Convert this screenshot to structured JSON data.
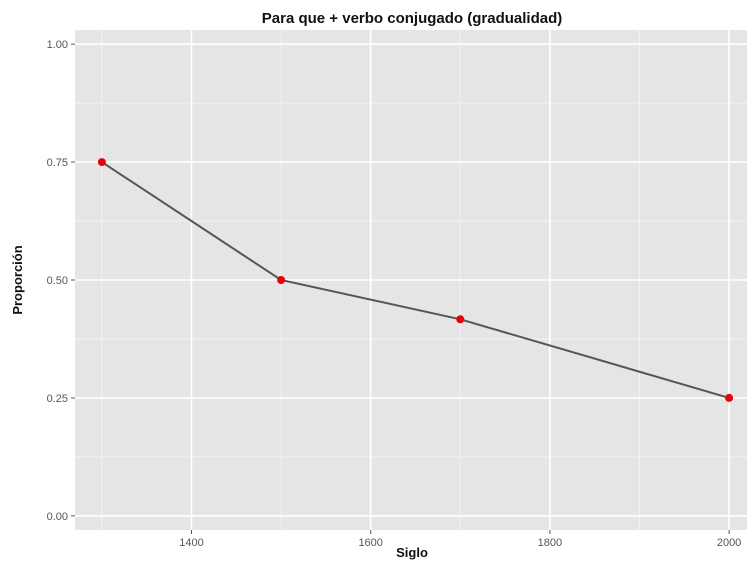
{
  "chart_data": {
    "type": "line",
    "title": "Para que + verbo conjugado (gradualidad)",
    "xlabel": "Siglo",
    "ylabel": "Proporción",
    "x": [
      1300,
      1500,
      1700,
      2000
    ],
    "series": [
      {
        "values": [
          0.75,
          0.5,
          0.4167,
          0.25
        ]
      }
    ],
    "xlim": [
      1270,
      2020
    ],
    "ylim": [
      -0.03,
      1.03
    ],
    "xticks": [
      1400,
      1600,
      1800,
      2000
    ],
    "xtick_labels": [
      "1400",
      "1600",
      "1800",
      "2000"
    ],
    "yticks": [
      0,
      0.25,
      0.5,
      0.75,
      1
    ],
    "ytick_labels": [
      "0.00",
      "0.25",
      "0.50",
      "0.75",
      "1.00"
    ],
    "grid": true,
    "legend": "none",
    "colors": {
      "panel": "#e5e5e5",
      "grid_major": "#ffffff",
      "grid_minor": "#f2f2f2",
      "line": "#555555",
      "points": "#e8000b"
    }
  }
}
